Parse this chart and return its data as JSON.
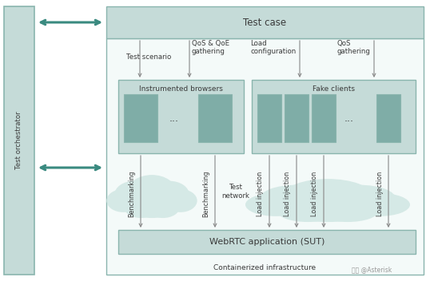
{
  "bg_color": "#ffffff",
  "border_color": "#8ab5ae",
  "fill_light": "#c5dbd8",
  "fill_medium": "#7fada7",
  "fill_white": "#f4faf9",
  "cloud_color": "#d5e9e6",
  "text_color": "#3a3a3a",
  "arrow_color": "#3a8a80",
  "line_color": "#888888",
  "watermark": "头条 @Asterisk",
  "title_test_case": "Test case",
  "label_orchestrator": "Test orchestrator",
  "label_instrumented": "Instrumented browsers",
  "label_fake": "Fake clients",
  "label_webrtc": "WebRTC application (SUT)",
  "label_containerized": "Containerized infrastructure",
  "label_test_scenario": "Test scenario",
  "label_qos_qoe": "QoS & QoE\ngathering",
  "label_load_config": "Load\nconfiguration",
  "label_qos": "QoS\ngathering",
  "label_bench1": "Benchmarking",
  "label_bench2": "Benchmarking",
  "label_test_network": "Test\nnetwork",
  "label_load_inj": "Load injection",
  "ellipsis": "..."
}
